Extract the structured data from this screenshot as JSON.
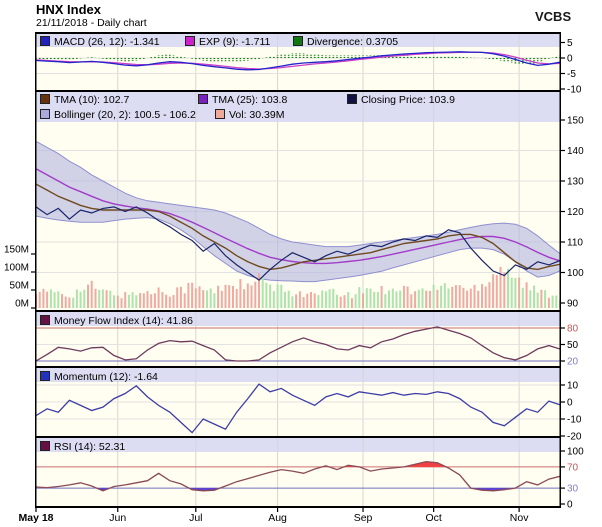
{
  "header": {
    "title": "HNX Index",
    "subtitle": "21/11/2018 - Daily chart",
    "brand": "VCBS"
  },
  "colors": {
    "plot_bg": "#fffef0",
    "legend_band_bg": "#dcdcf2",
    "grid": "#dcdcdc",
    "frame": "#000000",
    "macd_line": "#2323cb",
    "exp_line": "#cb3ecb",
    "divergence": "#0a7d0a",
    "close_line": "#19246b",
    "tma10_line": "#6f4a1f",
    "tma25_line": "#a23cc8",
    "bollinger_fill": "#b7b7e2",
    "bollinger_edge": "#8f8fd0",
    "vol_up": "#aee3ae",
    "vol_down": "#efaba3",
    "mfi_line": "#6e3a5e",
    "momentum_line": "#3c3ca8",
    "rsi_line": "#8a4a58",
    "threshold_red": "#cc7070",
    "threshold_blue": "#7070c0",
    "tick_red": "#cc5555",
    "tick_blue": "#8080c8"
  },
  "legends": {
    "macd": [
      {
        "label": "MACD (26, 12): -1.341",
        "swatch": "#2222bb"
      },
      {
        "label": "EXP (9): -1.711",
        "swatch": "#cc22cc"
      },
      {
        "label": "Divergence: 0.3705",
        "swatch": "#117711"
      }
    ],
    "main_row1": [
      {
        "label": "TMA (10): 102.7",
        "swatch": "#663311"
      },
      {
        "label": "TMA (25): 103.8",
        "swatch": "#7722bb"
      },
      {
        "label": "Closing Price: 103.9",
        "swatch": "#111144"
      }
    ],
    "main_row2": [
      {
        "label": "Bollinger (20, 2): 100.5 - 106.2",
        "swatch": "#aaaadd"
      },
      {
        "label": "Vol: 30.39M",
        "swatch": "#eeaa99"
      }
    ],
    "mfi": [
      {
        "label": "Money Flow Index (14): 41.86",
        "swatch": "#661144"
      }
    ],
    "momentum": [
      {
        "label": "Momentum (12): -1.64",
        "swatch": "#2233bb"
      }
    ],
    "rsi": [
      {
        "label": "RSI (14): 52.31",
        "swatch": "#661144"
      }
    ]
  },
  "chart_data": {
    "type": "line",
    "title": "HNX Index - Daily chart",
    "as_of": "21/11/2018",
    "x": {
      "unit": "trading-day-index",
      "total_days": 141,
      "sample_step": 3,
      "month_ticks": [
        {
          "label": "May 18",
          "day": 0,
          "bold": true
        },
        {
          "label": "Jun",
          "day": 22
        },
        {
          "label": "Jul",
          "day": 43
        },
        {
          "label": "Aug",
          "day": 65
        },
        {
          "label": "Sep",
          "day": 88
        },
        {
          "label": "Oct",
          "day": 107
        },
        {
          "label": "Nov",
          "day": 130
        }
      ]
    },
    "panels": [
      {
        "id": "macd",
        "name": "MACD (26, 12)",
        "yticks": [
          {
            "v": 5,
            "label": "5"
          },
          {
            "v": 0,
            "label": "0"
          },
          {
            "v": -5,
            "label": "-5"
          },
          {
            "v": -10,
            "label": "-10"
          }
        ],
        "series": [
          {
            "name": "MACD (26, 12)",
            "last": -1.341,
            "values": [
              -0.8,
              -1.0,
              -1.2,
              -1.5,
              -1.3,
              -1.1,
              -1.4,
              -1.8,
              -2.3,
              -2.5,
              -2.2,
              -1.6,
              -1.2,
              -1.4,
              -1.8,
              -2.4,
              -2.8,
              -3.2,
              -3.6,
              -3.8,
              -3.7,
              -3.2,
              -2.6,
              -2.0,
              -1.6,
              -1.4,
              -1.2,
              -0.9,
              -0.5,
              -0.1,
              0.3,
              0.7,
              1.0,
              1.3,
              1.5,
              1.7,
              1.8,
              1.9,
              2.0,
              1.9,
              1.8,
              1.4,
              0.6,
              -0.5,
              -1.6,
              -2.4,
              -2.0,
              -1.341
            ]
          },
          {
            "name": "EXP (9)",
            "last": -1.711,
            "values": [
              -0.6,
              -0.8,
              -1.0,
              -1.2,
              -1.25,
              -1.2,
              -1.3,
              -1.5,
              -1.8,
              -2.1,
              -2.2,
              -2.0,
              -1.7,
              -1.6,
              -1.7,
              -2.0,
              -2.3,
              -2.7,
              -3.1,
              -3.4,
              -3.55,
              -3.4,
              -3.1,
              -2.7,
              -2.3,
              -1.9,
              -1.6,
              -1.3,
              -0.9,
              -0.5,
              -0.1,
              0.3,
              0.6,
              0.9,
              1.2,
              1.4,
              1.6,
              1.7,
              1.8,
              1.85,
              1.8,
              1.6,
              1.1,
              0.3,
              -0.7,
              -1.6,
              -1.9,
              -1.711
            ]
          },
          {
            "name": "Divergence",
            "style": "histogram",
            "last": 0.3705,
            "values": [
              -0.2,
              -0.2,
              -0.2,
              -0.3,
              -0.05,
              0.1,
              -0.1,
              -0.3,
              -0.5,
              -0.4,
              0,
              0.4,
              0.5,
              0.2,
              -0.1,
              -0.4,
              -0.5,
              -0.5,
              -0.5,
              -0.4,
              -0.15,
              0.2,
              0.5,
              0.7,
              0.7,
              0.5,
              0.4,
              0.4,
              0.4,
              0.4,
              0.4,
              0.4,
              0.4,
              0.4,
              0.3,
              0.3,
              0.2,
              0.2,
              0.2,
              0.05,
              0,
              -0.2,
              -0.5,
              -0.8,
              -0.9,
              -0.8,
              -0.1,
              0.3705
            ]
          }
        ]
      },
      {
        "id": "price",
        "name": "HNX Index price",
        "yticks": [
          {
            "v": 150,
            "label": "150"
          },
          {
            "v": 140,
            "label": "140"
          },
          {
            "v": 130,
            "label": "130"
          },
          {
            "v": 120,
            "label": "120"
          },
          {
            "v": 110,
            "label": "110"
          },
          {
            "v": 100,
            "label": "100"
          },
          {
            "v": 90,
            "label": "90"
          }
        ],
        "volume_ticks": [
          {
            "v": 150,
            "label": "150M"
          },
          {
            "v": 100,
            "label": "100M"
          },
          {
            "v": 50,
            "label": "50M"
          },
          {
            "v": 0,
            "label": "0M"
          }
        ],
        "series": [
          {
            "name": "Closing Price",
            "last": 103.9,
            "values": [
              121.5,
              119,
              121,
              117.5,
              120.5,
              119.5,
              121,
              121.5,
              120,
              121.5,
              119.5,
              117,
              115,
              112.5,
              110.5,
              107,
              109.5,
              105.5,
              102.5,
              100,
              97.5,
              101,
              104,
              106.5,
              105,
              103.5,
              105.5,
              107,
              106,
              107.5,
              109,
              108.5,
              110,
              111,
              110.5,
              112,
              111.5,
              114,
              113,
              108,
              104,
              100.5,
              99,
              102.5,
              101,
              103.5,
              102.5,
              103.9
            ]
          },
          {
            "name": "TMA (10)",
            "last": 102.7,
            "values": [
              129,
              127,
              125,
              123.5,
              122,
              121,
              120.5,
              120.5,
              120.5,
              120.5,
              120.5,
              120,
              118.5,
              116.5,
              114.5,
              112,
              110,
              108,
              105.5,
              103.5,
              102,
              101,
              101.5,
              102.5,
              103.5,
              104,
              104.5,
              105,
              105.5,
              106,
              106.5,
              107.5,
              108.5,
              109.5,
              110,
              110.5,
              111,
              112,
              112.5,
              112.5,
              111.5,
              109.5,
              106.5,
              103.5,
              101.5,
              101,
              102,
              102.7
            ]
          },
          {
            "name": "TMA (25)",
            "last": 103.8,
            "values": [
              134,
              132,
              130,
              128,
              126.5,
              125,
              123.5,
              122.5,
              121.8,
              121.2,
              120.8,
              120.2,
              119.3,
              118,
              116.5,
              114.8,
              113,
              111.2,
              109.5,
              107.8,
              106.3,
              105,
              104.2,
              103.6,
              103.2,
              103,
              103,
              103.2,
              103.6,
              104,
              104.6,
              105.2,
              106,
              106.8,
              107.6,
              108.4,
              109.2,
              110,
              110.8,
              111.4,
              111.8,
              111.8,
              111.2,
              110,
              108.4,
              106.6,
              105,
              103.8
            ]
          }
        ],
        "band": {
          "name": "Bollinger (20, 2)",
          "last_range": "100.5 - 106.2",
          "upper": [
            143,
            141,
            139,
            136.5,
            134.5,
            132,
            130,
            128,
            126,
            124.5,
            123.5,
            123,
            122.5,
            122,
            121.5,
            121,
            120.5,
            119.5,
            118,
            116.5,
            114.5,
            112.5,
            111,
            110,
            109.5,
            109,
            108.5,
            108.5,
            108.5,
            109,
            109.5,
            110,
            110.5,
            111,
            111.5,
            112,
            112.5,
            113.2,
            114,
            114.8,
            115.5,
            116,
            116.2,
            115.8,
            114.5,
            112,
            109,
            106.2
          ],
          "lower": [
            118.5,
            117.8,
            117.2,
            116.8,
            116.5,
            116.5,
            116.5,
            117,
            117.5,
            117.8,
            118,
            117.5,
            116,
            114,
            111.5,
            108.5,
            105.5,
            103,
            100.5,
            99,
            98,
            97.5,
            97.3,
            97.2,
            97,
            97,
            97.5,
            98,
            98.5,
            99,
            99.7,
            100.4,
            101.5,
            102.5,
            103.5,
            104.5,
            105.5,
            106.5,
            107.5,
            108,
            108,
            107.5,
            106,
            103.5,
            100.5,
            98.5,
            99,
            100.5
          ]
        },
        "volume": {
          "name": "Vol",
          "unit": "M",
          "last": 30.39,
          "values": [
            55,
            40,
            45,
            35,
            50,
            60,
            45,
            40,
            35,
            45,
            40,
            50,
            45,
            55,
            60,
            50,
            45,
            65,
            70,
            55,
            80,
            60,
            50,
            45,
            40,
            35,
            45,
            40,
            35,
            45,
            55,
            50,
            60,
            55,
            45,
            50,
            55,
            65,
            60,
            50,
            70,
            95,
            125,
            85,
            60,
            45,
            40,
            30.39
          ]
        }
      },
      {
        "id": "mfi",
        "name": "Money Flow Index (14)",
        "yticks": [
          {
            "v": 80,
            "label": "80",
            "color": "#cc5555"
          },
          {
            "v": 50,
            "label": "50",
            "color": "#000000"
          },
          {
            "v": 20,
            "label": "20",
            "color": "#8080c8"
          }
        ],
        "thresholds": [
          {
            "v": 80,
            "color": "#cc7070"
          },
          {
            "v": 20,
            "color": "#7070c0"
          }
        ],
        "fills": {
          "above": {
            "v": 80,
            "color": "#e05050"
          }
        },
        "series": [
          {
            "name": "Money Flow Index (14)",
            "last": 41.86,
            "values": [
              20,
              32,
              45,
              42,
              38,
              44,
              45,
              30,
              22,
              24,
              40,
              52,
              57,
              55,
              56,
              48,
              40,
              22,
              20,
              20,
              22,
              35,
              45,
              55,
              62,
              55,
              50,
              42,
              40,
              48,
              44,
              55,
              60,
              68,
              74,
              78,
              82,
              76,
              70,
              62,
              48,
              35,
              26,
              22,
              30,
              42,
              48,
              41.86
            ]
          }
        ]
      },
      {
        "id": "momentum",
        "name": "Momentum (12)",
        "yticks": [
          {
            "v": 10,
            "label": "10"
          },
          {
            "v": 0,
            "label": "0"
          },
          {
            "v": -10,
            "label": "-10"
          },
          {
            "v": -20,
            "label": "-20"
          }
        ],
        "series": [
          {
            "name": "Momentum (12)",
            "last": -1.64,
            "values": [
              -8,
              -4,
              -6,
              1,
              -2,
              -5,
              -3,
              2,
              5,
              9.5,
              3,
              -2,
              -6,
              -12,
              -18,
              -10,
              -13,
              -16,
              -6,
              2,
              10.5,
              6,
              8,
              4,
              1,
              -2,
              3,
              5,
              3,
              6,
              5,
              4,
              5.5,
              4,
              5,
              4.5,
              6,
              5,
              2,
              -3,
              -6,
              -12,
              -14,
              -9,
              -4,
              -6,
              0.5,
              -1.64
            ]
          }
        ]
      },
      {
        "id": "rsi",
        "name": "RSI (14)",
        "yticks": [
          {
            "v": 100,
            "label": "100",
            "color": "#000000"
          },
          {
            "v": 70,
            "label": "70",
            "color": "#cc5555"
          },
          {
            "v": 30,
            "label": "30",
            "color": "#8080c8"
          },
          {
            "v": 0,
            "label": "0",
            "color": "#000000"
          }
        ],
        "thresholds": [
          {
            "v": 70,
            "color": "#cc7070"
          },
          {
            "v": 30,
            "color": "#7070c0"
          }
        ],
        "fills": {
          "above": {
            "v": 70,
            "color": "#f04040"
          },
          "below": {
            "v": 30,
            "color": "#5b3fd0"
          }
        },
        "series": [
          {
            "name": "RSI (14)",
            "last": 52.31,
            "values": [
              32,
              31,
              33,
              36,
              40,
              34,
              25,
              33,
              36,
              40,
              44,
              58,
              44,
              38,
              27,
              25,
              26,
              34,
              42,
              48,
              54,
              60,
              65,
              62,
              58,
              66,
              72,
              65,
              73,
              70,
              62,
              66,
              68,
              70,
              75,
              80,
              78,
              68,
              55,
              30,
              26,
              25,
              27,
              30,
              42,
              36,
              47,
              52.31
            ]
          }
        ]
      }
    ]
  }
}
